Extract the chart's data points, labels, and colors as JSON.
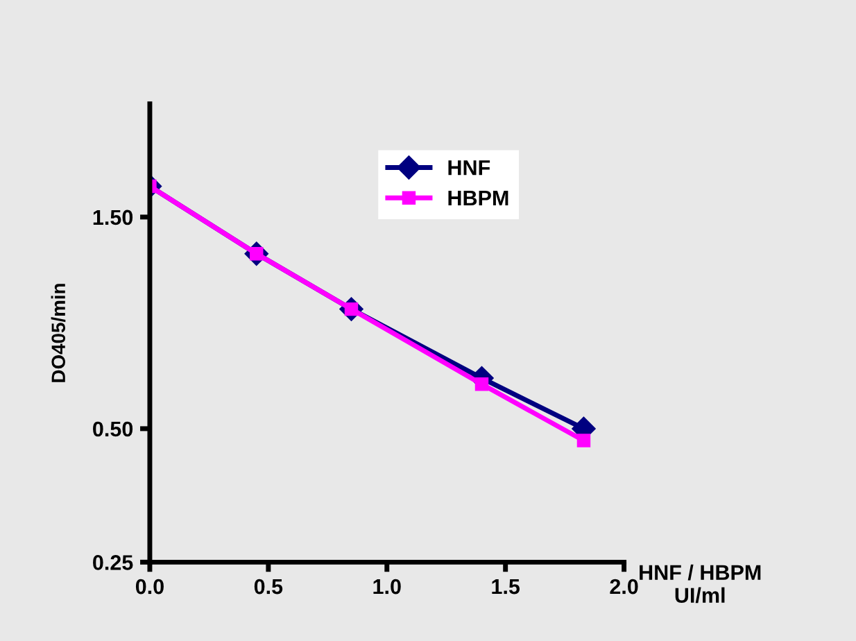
{
  "chart_data": {
    "type": "line",
    "xlabel": "HNF / HBPM\nUI/ml",
    "ylabel": "DO405/min",
    "x": [
      0.0,
      0.45,
      0.85,
      1.4,
      1.83
    ],
    "series": [
      {
        "name": "HNF",
        "color": "#000080",
        "marker": "diamond",
        "values": [
          1.76,
          1.24,
          0.93,
          0.65,
          0.5
        ]
      },
      {
        "name": "HBPM",
        "color": "#ff00ff",
        "marker": "square",
        "values": [
          1.76,
          1.24,
          0.93,
          0.63,
          0.47
        ]
      }
    ],
    "log": "y",
    "xlim": [
      0.0,
      2.0
    ],
    "xticks": [
      {
        "value": 0.0,
        "label": "0.0"
      },
      {
        "value": 0.5,
        "label": "0.5"
      },
      {
        "value": 1.0,
        "label": "1.0"
      },
      {
        "value": 1.5,
        "label": "1.5"
      },
      {
        "value": 2.0,
        "label": "2.0"
      }
    ],
    "ylim": [
      0.25,
      2.7
    ],
    "yticks": [
      {
        "value": 0.25,
        "label": "0.25"
      },
      {
        "value": 0.5,
        "label": "0.50"
      },
      {
        "value": 1.5,
        "label": "1.50"
      }
    ],
    "grid": false,
    "legend": "top",
    "line_style": "solid"
  }
}
